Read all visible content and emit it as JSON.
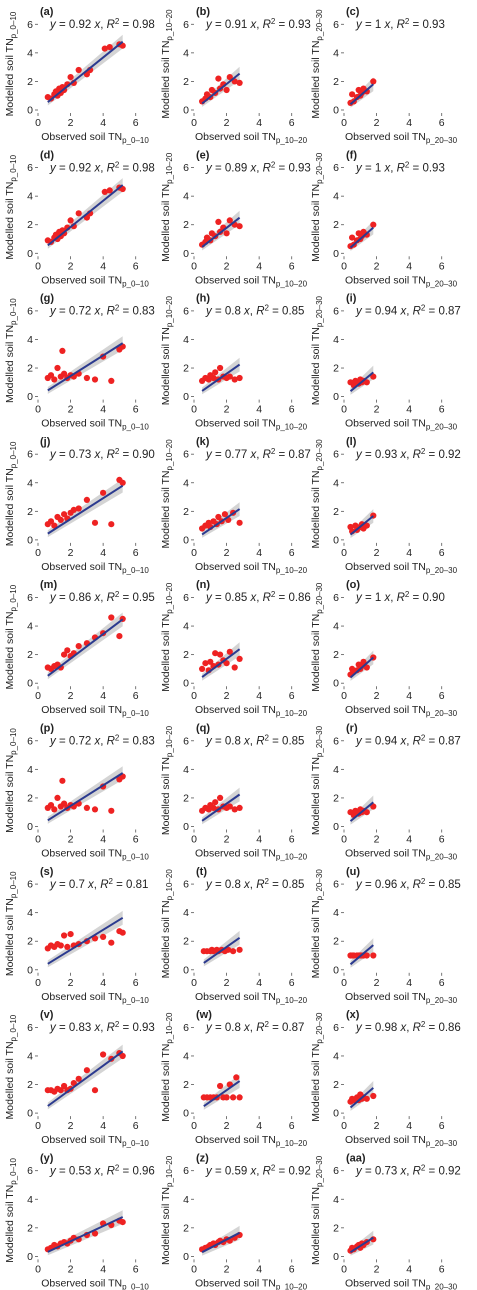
{
  "figure": {
    "x_tick_labels": [
      "0",
      "2",
      "4",
      "6"
    ],
    "y_tick_labels": [
      "0",
      "2",
      "4",
      "6"
    ],
    "axis_prefix": {
      "y": "Modelled soil TN",
      "x": "Observed soil TN"
    },
    "depth_subscripts": [
      "p_0–10",
      "p_10–20",
      "p_20–30"
    ],
    "colors": {
      "points": "#ee2222",
      "fit_line": "#2b3a8f",
      "ci_band": "#c9c9c9"
    }
  },
  "chart_data": [
    {
      "type": "scatter",
      "panel": "(a)",
      "equation": "y = 0.92 x, R² = 0.98",
      "slope": 0.92,
      "ylabel": "Modelled soil TN p_0–10",
      "xlabel": "Observed soil TN p_0–10",
      "xlim": [
        0,
        7
      ],
      "ylim": [
        0,
        7
      ],
      "x": [
        0.6,
        0.8,
        1.0,
        1.1,
        1.2,
        1.3,
        1.4,
        1.5,
        1.6,
        1.8,
        2.0,
        2.2,
        2.5,
        3.0,
        3.2,
        4.1,
        4.4,
        5.0,
        5.2
      ],
      "y": [
        0.9,
        0.8,
        1.1,
        1.3,
        1.0,
        1.5,
        1.2,
        1.6,
        1.4,
        1.8,
        2.3,
        1.9,
        2.8,
        2.5,
        2.8,
        4.3,
        4.4,
        4.6,
        4.5
      ]
    },
    {
      "type": "scatter",
      "panel": "(b)",
      "equation": "y = 0.91 x, R² = 0.93",
      "slope": 0.91,
      "ylabel": "Modelled soil TN p_10–20",
      "xlabel": "Observed soil TN p_10–20",
      "xlim": [
        0,
        7
      ],
      "ylim": [
        0,
        7
      ],
      "x": [
        0.5,
        0.7,
        0.8,
        1.0,
        1.1,
        1.3,
        1.5,
        1.6,
        1.8,
        2.0,
        2.2,
        2.5,
        2.8
      ],
      "y": [
        0.6,
        0.8,
        1.1,
        0.9,
        1.4,
        1.2,
        2.2,
        1.5,
        1.8,
        1.4,
        2.3,
        2.0,
        1.9
      ]
    },
    {
      "type": "scatter",
      "panel": "(c)",
      "equation": "y = 1 x, R² = 0.93",
      "slope": 1.0,
      "ylabel": "Modelled soil TN p_20–30",
      "xlabel": "Observed soil TN p_20–30",
      "xlim": [
        0,
        7
      ],
      "ylim": [
        0,
        7
      ],
      "x": [
        0.4,
        0.5,
        0.6,
        0.8,
        0.9,
        1.0,
        1.1,
        1.2,
        1.4,
        1.8
      ],
      "y": [
        0.5,
        1.1,
        0.6,
        0.9,
        1.4,
        1.0,
        1.2,
        1.5,
        1.3,
        2.0
      ]
    },
    {
      "type": "scatter",
      "panel": "(d)",
      "equation": "y = 0.92 x, R² = 0.98",
      "slope": 0.92,
      "ylabel": "Modelled soil TN p_0–10",
      "xlabel": "Observed soil TN p_0–10",
      "xlim": [
        0,
        7
      ],
      "ylim": [
        0,
        7
      ],
      "x": [
        0.6,
        0.8,
        1.0,
        1.1,
        1.2,
        1.3,
        1.4,
        1.5,
        1.6,
        1.8,
        2.0,
        2.2,
        2.5,
        3.0,
        3.2,
        4.1,
        4.4,
        5.0,
        5.2
      ],
      "y": [
        0.9,
        0.8,
        1.1,
        1.3,
        1.0,
        1.5,
        1.2,
        1.6,
        1.4,
        1.8,
        2.3,
        1.9,
        2.8,
        2.5,
        2.8,
        4.3,
        4.4,
        4.6,
        4.5
      ]
    },
    {
      "type": "scatter",
      "panel": "(e)",
      "equation": "y = 0.89 x, R² = 0.93",
      "slope": 0.89,
      "ylabel": "Modelled soil TN p_10–20",
      "xlabel": "Observed soil TN p_10–20",
      "xlim": [
        0,
        7
      ],
      "ylim": [
        0,
        7
      ],
      "x": [
        0.5,
        0.7,
        0.8,
        1.0,
        1.1,
        1.3,
        1.5,
        1.6,
        1.8,
        2.0,
        2.2,
        2.5,
        2.8
      ],
      "y": [
        0.6,
        0.8,
        1.1,
        0.9,
        1.4,
        1.2,
        2.2,
        1.5,
        1.8,
        1.4,
        2.3,
        2.0,
        1.9
      ]
    },
    {
      "type": "scatter",
      "panel": "(f)",
      "equation": "y = 1 x, R² = 0.93",
      "slope": 1.0,
      "ylabel": "Modelled soil TN p_20–30",
      "xlabel": "Observed soil TN p_20–30",
      "xlim": [
        0,
        7
      ],
      "ylim": [
        0,
        7
      ],
      "x": [
        0.4,
        0.5,
        0.6,
        0.8,
        0.9,
        1.0,
        1.1,
        1.2,
        1.4,
        1.8
      ],
      "y": [
        0.5,
        1.1,
        0.6,
        0.9,
        1.4,
        1.0,
        1.2,
        1.5,
        1.3,
        2.0
      ]
    },
    {
      "type": "scatter",
      "panel": "(g)",
      "equation": "y = 0.72 x, R² = 0.83",
      "slope": 0.72,
      "ylabel": "Modelled soil TN p_0–10",
      "xlabel": "Observed soil TN p_0–10",
      "xlim": [
        0,
        7
      ],
      "ylim": [
        0,
        7
      ],
      "x": [
        0.6,
        0.8,
        1.0,
        1.2,
        1.4,
        1.5,
        1.6,
        1.8,
        2.0,
        2.2,
        2.5,
        3.0,
        3.5,
        4.0,
        4.5,
        5.0,
        5.2
      ],
      "y": [
        1.3,
        1.5,
        1.2,
        2.0,
        1.4,
        3.2,
        1.6,
        1.3,
        1.5,
        1.4,
        1.6,
        1.3,
        1.2,
        2.8,
        1.1,
        3.3,
        3.5
      ]
    },
    {
      "type": "scatter",
      "panel": "(h)",
      "equation": "y = 0.8 x, R² = 0.85",
      "slope": 0.8,
      "ylabel": "Modelled soil TN p_10–20",
      "xlabel": "Observed soil TN p_10–20",
      "xlim": [
        0,
        7
      ],
      "ylim": [
        0,
        7
      ],
      "x": [
        0.5,
        0.7,
        0.9,
        1.0,
        1.2,
        1.3,
        1.5,
        1.6,
        1.8,
        2.0,
        2.2,
        2.5,
        2.8
      ],
      "y": [
        1.1,
        1.3,
        1.2,
        1.5,
        1.3,
        1.7,
        1.2,
        2.0,
        1.4,
        1.3,
        1.4,
        1.2,
        1.3
      ]
    },
    {
      "type": "scatter",
      "panel": "(i)",
      "equation": "y = 0.94 x, R² = 0.87",
      "slope": 0.94,
      "ylabel": "Modelled soil TN p_20–30",
      "xlabel": "Observed soil TN p_20–30",
      "xlim": [
        0,
        7
      ],
      "ylim": [
        0,
        7
      ],
      "x": [
        0.4,
        0.6,
        0.7,
        0.9,
        1.0,
        1.1,
        1.2,
        1.4,
        1.8
      ],
      "y": [
        1.0,
        0.8,
        1.1,
        0.9,
        1.2,
        1.0,
        1.1,
        1.0,
        1.4
      ]
    },
    {
      "type": "scatter",
      "panel": "(j)",
      "equation": "y = 0.73 x, R² = 0.90",
      "slope": 0.73,
      "ylabel": "Modelled soil TN p_0–10",
      "xlabel": "Observed soil TN p_0–10",
      "xlim": [
        0,
        7
      ],
      "ylim": [
        0,
        7
      ],
      "x": [
        0.6,
        0.8,
        1.0,
        1.2,
        1.4,
        1.6,
        1.8,
        2.0,
        2.2,
        2.5,
        3.0,
        3.5,
        4.0,
        4.5,
        5.0,
        5.2
      ],
      "y": [
        1.1,
        1.3,
        1.0,
        1.6,
        1.4,
        1.8,
        1.5,
        1.9,
        2.1,
        2.2,
        2.8,
        1.2,
        3.3,
        1.1,
        4.2,
        4.0
      ]
    },
    {
      "type": "scatter",
      "panel": "(k)",
      "equation": "y = 0.77 x, R² = 0.87",
      "slope": 0.77,
      "ylabel": "Modelled soil TN p_10–20",
      "xlabel": "Observed soil TN p_10–20",
      "xlim": [
        0,
        7
      ],
      "ylim": [
        0,
        7
      ],
      "x": [
        0.5,
        0.7,
        0.9,
        1.0,
        1.2,
        1.4,
        1.5,
        1.7,
        1.9,
        2.1,
        2.4,
        2.8
      ],
      "y": [
        0.8,
        1.0,
        1.2,
        0.9,
        1.3,
        1.1,
        1.6,
        1.3,
        1.8,
        1.4,
        1.9,
        1.2
      ]
    },
    {
      "type": "scatter",
      "panel": "(l)",
      "equation": "y = 0.93 x, R² = 0.92",
      "slope": 0.93,
      "ylabel": "Modelled soil TN p_20–30",
      "xlabel": "Observed soil TN p_20–30",
      "xlim": [
        0,
        7
      ],
      "ylim": [
        0,
        7
      ],
      "x": [
        0.4,
        0.5,
        0.7,
        0.8,
        1.0,
        1.1,
        1.2,
        1.4,
        1.8
      ],
      "y": [
        0.9,
        0.6,
        1.0,
        0.7,
        0.9,
        1.1,
        0.8,
        1.0,
        1.7
      ]
    },
    {
      "type": "scatter",
      "panel": "(m)",
      "equation": "y = 0.86 x, R² = 0.95",
      "slope": 0.86,
      "ylabel": "Modelled soil TN p_0–10",
      "xlabel": "Observed soil TN p_0–10",
      "xlim": [
        0,
        7
      ],
      "ylim": [
        0,
        7
      ],
      "x": [
        0.6,
        0.8,
        1.0,
        1.2,
        1.4,
        1.6,
        1.8,
        2.0,
        2.2,
        2.5,
        3.0,
        3.5,
        4.0,
        4.5,
        5.0,
        5.2
      ],
      "y": [
        1.1,
        1.0,
        1.2,
        1.3,
        1.1,
        2.0,
        2.3,
        1.9,
        2.1,
        2.6,
        2.8,
        3.2,
        3.5,
        4.6,
        3.3,
        4.5
      ]
    },
    {
      "type": "scatter",
      "panel": "(n)",
      "equation": "y = 0.85 x, R² = 0.86",
      "slope": 0.85,
      "ylabel": "Modelled soil TN p_10–20",
      "xlabel": "Observed soil TN p_10–20",
      "xlim": [
        0,
        7
      ],
      "ylim": [
        0,
        7
      ],
      "x": [
        0.5,
        0.7,
        0.9,
        1.0,
        1.2,
        1.3,
        1.5,
        1.6,
        1.8,
        2.0,
        2.2,
        2.5,
        2.8
      ],
      "y": [
        1.0,
        1.4,
        0.9,
        1.5,
        1.2,
        2.1,
        1.3,
        2.0,
        1.6,
        1.4,
        2.2,
        1.1,
        1.7
      ]
    },
    {
      "type": "scatter",
      "panel": "(o)",
      "equation": "y = 1 x, R² = 0.90",
      "slope": 1.0,
      "ylabel": "Modelled soil TN p_20–30",
      "xlabel": "Observed soil TN p_20–30",
      "xlim": [
        0,
        7
      ],
      "ylim": [
        0,
        7
      ],
      "x": [
        0.4,
        0.5,
        0.6,
        0.8,
        0.9,
        1.0,
        1.1,
        1.2,
        1.4,
        1.8
      ],
      "y": [
        0.6,
        1.0,
        0.8,
        0.9,
        1.3,
        1.0,
        1.2,
        1.5,
        1.1,
        1.8
      ]
    },
    {
      "type": "scatter",
      "panel": "(p)",
      "equation": "y = 0.72 x, R² = 0.83",
      "slope": 0.72,
      "ylabel": "Modelled soil TN p_0–10",
      "xlabel": "Observed soil TN p_0–10",
      "xlim": [
        0,
        7
      ],
      "ylim": [
        0,
        7
      ],
      "x": [
        0.6,
        0.8,
        1.0,
        1.2,
        1.4,
        1.5,
        1.6,
        1.8,
        2.0,
        2.2,
        2.5,
        3.0,
        3.5,
        4.0,
        4.5,
        5.0,
        5.2
      ],
      "y": [
        1.3,
        1.5,
        1.2,
        2.0,
        1.4,
        3.2,
        1.6,
        1.3,
        1.5,
        1.4,
        1.6,
        1.3,
        1.2,
        2.8,
        1.1,
        3.3,
        3.5
      ]
    },
    {
      "type": "scatter",
      "panel": "(q)",
      "equation": "y = 0.8 x, R² = 0.85",
      "slope": 0.8,
      "ylabel": "Modelled soil TN p_10–20",
      "xlabel": "Observed soil TN p_10–20",
      "xlim": [
        0,
        7
      ],
      "ylim": [
        0,
        7
      ],
      "x": [
        0.5,
        0.7,
        0.9,
        1.0,
        1.2,
        1.3,
        1.5,
        1.6,
        1.8,
        2.0,
        2.2,
        2.5,
        2.8
      ],
      "y": [
        1.1,
        1.3,
        1.2,
        1.5,
        1.3,
        1.7,
        1.2,
        2.0,
        1.4,
        1.3,
        1.4,
        1.2,
        1.3
      ]
    },
    {
      "type": "scatter",
      "panel": "(r)",
      "equation": "y = 0.94 x, R² = 0.87",
      "slope": 0.94,
      "ylabel": "Modelled soil TN p_20–30",
      "xlabel": "Observed soil TN p_20–30",
      "xlim": [
        0,
        7
      ],
      "ylim": [
        0,
        7
      ],
      "x": [
        0.4,
        0.6,
        0.7,
        0.9,
        1.0,
        1.1,
        1.2,
        1.4,
        1.8
      ],
      "y": [
        1.0,
        0.8,
        1.1,
        0.9,
        1.2,
        1.0,
        1.1,
        1.0,
        1.4
      ]
    },
    {
      "type": "scatter",
      "panel": "(s)",
      "equation": "y = 0.7 x, R² = 0.81",
      "slope": 0.7,
      "ylabel": "Modelled soil TN p_0–10",
      "xlabel": "Observed soil TN p_0–10",
      "xlim": [
        0,
        7
      ],
      "ylim": [
        0,
        7
      ],
      "x": [
        0.6,
        0.8,
        1.0,
        1.2,
        1.4,
        1.6,
        1.8,
        2.0,
        2.2,
        2.5,
        3.0,
        3.5,
        4.0,
        4.5,
        5.0,
        5.2
      ],
      "y": [
        1.5,
        1.7,
        1.6,
        1.8,
        1.7,
        2.4,
        1.6,
        2.5,
        1.7,
        1.8,
        2.0,
        2.2,
        2.3,
        1.9,
        2.7,
        2.6
      ]
    },
    {
      "type": "scatter",
      "panel": "(t)",
      "equation": "y = 0.8 x, R² = 0.85",
      "slope": 0.8,
      "ylabel": "Modelled soil TN p_10–20",
      "xlabel": "Observed soil TN p_10–20",
      "xlim": [
        0,
        7
      ],
      "ylim": [
        0,
        7
      ],
      "x": [
        0.6,
        0.8,
        1.0,
        1.1,
        1.2,
        1.4,
        1.5,
        1.7,
        1.9,
        2.1,
        2.4,
        2.8
      ],
      "y": [
        1.3,
        1.3,
        1.3,
        1.4,
        1.3,
        1.4,
        1.3,
        1.4,
        1.3,
        1.4,
        1.3,
        1.4
      ]
    },
    {
      "type": "scatter",
      "panel": "(u)",
      "equation": "y = 0.96 x, R² = 0.85",
      "slope": 0.96,
      "ylabel": "Modelled soil TN p_20–30",
      "xlabel": "Observed soil TN p_20–30",
      "xlim": [
        0,
        7
      ],
      "ylim": [
        0,
        7
      ],
      "x": [
        0.4,
        0.5,
        0.6,
        0.8,
        0.9,
        1.0,
        1.1,
        1.2,
        1.4,
        1.8
      ],
      "y": [
        1.0,
        1.0,
        1.0,
        1.0,
        1.0,
        1.0,
        1.0,
        1.0,
        1.0,
        1.0
      ]
    },
    {
      "type": "scatter",
      "panel": "(v)",
      "equation": "y = 0.83 x, R² = 0.93",
      "slope": 0.83,
      "ylabel": "Modelled soil TN p_0–10",
      "xlabel": "Observed soil TN p_0–10",
      "xlim": [
        0,
        7
      ],
      "ylim": [
        0,
        7
      ],
      "x": [
        0.6,
        0.8,
        1.0,
        1.2,
        1.4,
        1.6,
        1.8,
        2.0,
        2.2,
        2.5,
        3.0,
        3.5,
        4.0,
        4.5,
        5.0,
        5.2
      ],
      "y": [
        1.6,
        1.6,
        1.5,
        1.7,
        1.6,
        1.9,
        1.6,
        1.7,
        2.1,
        2.4,
        3.0,
        1.6,
        4.1,
        3.8,
        4.2,
        4.0
      ]
    },
    {
      "type": "scatter",
      "panel": "(w)",
      "equation": "y = 0.8 x, R² = 0.87",
      "slope": 0.8,
      "ylabel": "Modelled soil TN p_10–20",
      "xlabel": "Observed soil TN p_10–20",
      "xlim": [
        0,
        7
      ],
      "ylim": [
        0,
        7
      ],
      "x": [
        0.6,
        0.8,
        1.0,
        1.2,
        1.4,
        1.6,
        1.8,
        2.0,
        2.2,
        2.4,
        2.6,
        2.8
      ],
      "y": [
        1.1,
        1.1,
        1.1,
        1.1,
        1.1,
        1.9,
        1.1,
        1.1,
        2.0,
        1.1,
        2.5,
        1.1
      ]
    },
    {
      "type": "scatter",
      "panel": "(x)",
      "equation": "y = 0.98 x, R² = 0.86",
      "slope": 0.98,
      "ylabel": "Modelled soil TN p_20–30",
      "xlabel": "Observed soil TN p_20–30",
      "xlim": [
        0,
        7
      ],
      "ylim": [
        0,
        7
      ],
      "x": [
        0.4,
        0.5,
        0.6,
        0.8,
        0.9,
        1.0,
        1.1,
        1.2,
        1.4,
        1.8
      ],
      "y": [
        0.8,
        1.0,
        0.9,
        1.1,
        0.9,
        1.3,
        1.0,
        1.1,
        1.0,
        1.2
      ]
    },
    {
      "type": "scatter",
      "panel": "(y)",
      "equation": "y = 0.53 x, R² = 0.96",
      "slope": 0.53,
      "ylabel": "Modelled soil TN p_0–10",
      "xlabel": "Observed soil TN p_0–10",
      "xlim": [
        0,
        7
      ],
      "ylim": [
        0,
        7
      ],
      "x": [
        0.6,
        0.8,
        1.0,
        1.2,
        1.4,
        1.6,
        1.8,
        2.0,
        2.2,
        2.5,
        3.0,
        3.5,
        4.0,
        4.5,
        5.0,
        5.2
      ],
      "y": [
        0.5,
        0.6,
        0.8,
        0.7,
        0.9,
        1.0,
        0.9,
        1.1,
        1.3,
        1.2,
        1.5,
        1.6,
        2.3,
        2.2,
        2.5,
        2.4
      ]
    },
    {
      "type": "scatter",
      "panel": "(z)",
      "equation": "y = 0.59 x, R² = 0.92",
      "slope": 0.59,
      "ylabel": "Modelled soil TN p_10–20",
      "xlabel": "Observed soil TN p_10–20",
      "xlim": [
        0,
        7
      ],
      "ylim": [
        0,
        7
      ],
      "x": [
        0.5,
        0.7,
        0.9,
        1.0,
        1.2,
        1.3,
        1.5,
        1.6,
        1.8,
        2.0,
        2.2,
        2.5,
        2.8
      ],
      "y": [
        0.5,
        0.6,
        0.7,
        0.8,
        0.9,
        0.8,
        1.0,
        1.1,
        1.0,
        1.2,
        1.1,
        1.3,
        1.5
      ]
    },
    {
      "type": "scatter",
      "panel": "(aa)",
      "equation": "y = 0.73 x, R² = 0.92",
      "slope": 0.73,
      "ylabel": "Modelled soil TN p_20–30",
      "xlabel": "Observed soil TN p_20–30",
      "xlim": [
        0,
        7
      ],
      "ylim": [
        0,
        7
      ],
      "x": [
        0.4,
        0.5,
        0.6,
        0.8,
        0.9,
        1.0,
        1.1,
        1.2,
        1.4,
        1.8
      ],
      "y": [
        0.4,
        0.6,
        0.5,
        0.7,
        0.8,
        0.6,
        0.9,
        0.8,
        1.0,
        1.2
      ]
    }
  ]
}
